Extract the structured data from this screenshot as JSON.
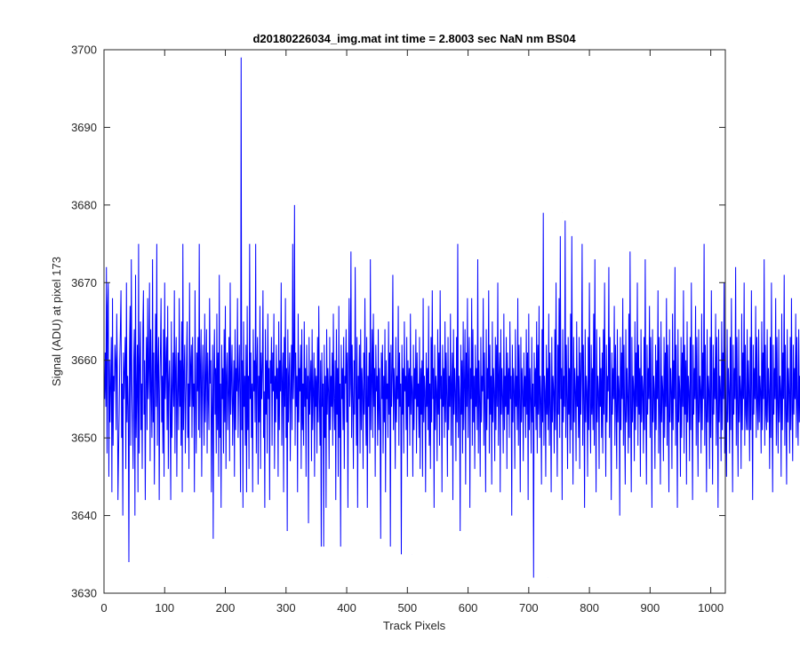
{
  "chart_data": {
    "type": "line",
    "title": "d20180226034_img.mat int time = 2.8003 sec  NaN nm BS04",
    "xlabel": "Track Pixels",
    "ylabel": "Signal (ADU) at pixel 173",
    "xlim": [
      0,
      1024
    ],
    "ylim": [
      3630,
      3700
    ],
    "xticks": [
      0,
      100,
      200,
      300,
      400,
      500,
      600,
      700,
      800,
      900,
      1000
    ],
    "yticks": [
      3630,
      3640,
      3650,
      3660,
      3670,
      3680,
      3690,
      3700
    ],
    "grid": false,
    "legend": "none",
    "series_color": "#0000ff",
    "series": [
      {
        "x_start": 1,
        "x_step": 1,
        "notable_points": [
          {
            "x": 228,
            "y": 3699
          },
          {
            "x": 318,
            "y": 3680
          },
          {
            "x": 755,
            "y": 3679
          },
          {
            "x": 41,
            "y": 3634
          },
          {
            "x": 732,
            "y": 3632
          },
          {
            "x": 508,
            "y": 3635
          }
        ],
        "values": [
          3655,
          3661,
          3654,
          3672,
          3648,
          3667,
          3670,
          3645,
          3660,
          3652,
          3657,
          3663,
          3643,
          3668,
          3649,
          3658,
          3656,
          3662,
          3660,
          3651,
          3666,
          3659,
          3642,
          3648,
          3653,
          3660,
          3664,
          3669,
          3650,
          3657,
          3640,
          3661,
          3655,
          3659,
          3663,
          3646,
          3670,
          3652,
          3658,
          3654,
          3634,
          3661,
          3667,
          3649,
          3673,
          3657,
          3653,
          3646,
          3660,
          3664,
          3640,
          3671,
          3650,
          3656,
          3662,
          3643,
          3675,
          3648,
          3659,
          3665,
          3651,
          3657,
          3646,
          3664,
          3669,
          3653,
          3660,
          3642,
          3657,
          3663,
          3651,
          3668,
          3655,
          3659,
          3670,
          3647,
          3664,
          3656,
          3650,
          3673,
          3652,
          3661,
          3644,
          3657,
          3666,
          3654,
          3675,
          3649,
          3659,
          3663,
          3642,
          3656,
          3661,
          3668,
          3652,
          3658,
          3648,
          3664,
          3645,
          3670,
          3655,
          3659,
          3663,
          3651,
          3667,
          3646,
          3657,
          3660,
          3653,
          3642,
          3665,
          3650,
          3656,
          3661,
          3654,
          3669,
          3648,
          3659,
          3663,
          3645,
          3656,
          3661,
          3651,
          3668,
          3654,
          3660,
          3649,
          3665,
          3643,
          3675,
          3651,
          3658,
          3662,
          3648,
          3655,
          3660,
          3665,
          3650,
          3657,
          3646,
          3670,
          3654,
          3659,
          3662,
          3650,
          3663,
          3654,
          3657,
          3643,
          3669,
          3655,
          3648,
          3661,
          3656,
          3663,
          3651,
          3675,
          3650,
          3659,
          3664,
          3645,
          3657,
          3662,
          3655,
          3649,
          3666,
          3652,
          3658,
          3664,
          3648,
          3661,
          3655,
          3651,
          3668,
          3657,
          3660,
          3643,
          3654,
          3662,
          3637,
          3658,
          3664,
          3653,
          3659,
          3648,
          3666,
          3651,
          3661,
          3645,
          3671,
          3650,
          3657,
          3641,
          3662,
          3655,
          3659,
          3648,
          3664,
          3652,
          3667,
          3646,
          3658,
          3661,
          3651,
          3656,
          3663,
          3647,
          3670,
          3653,
          3658,
          3662,
          3649,
          3655,
          3660,
          3645,
          3664,
          3651,
          3659,
          3656,
          3668,
          3650,
          3657,
          3662,
          3654,
          3643,
          3699,
          3651,
          3660,
          3641,
          3665,
          3654,
          3658,
          3649,
          3662,
          3643,
          3667,
          3651,
          3658,
          3646,
          3675,
          3655,
          3661,
          3650,
          3657,
          3643,
          3664,
          3656,
          3660,
          3652,
          3675,
          3648,
          3659,
          3663,
          3644,
          3658,
          3652,
          3667,
          3646,
          3661,
          3655,
          3659,
          3669,
          3650,
          3656,
          3641,
          3664,
          3653,
          3660,
          3648,
          3666,
          3655,
          3659,
          3642,
          3660,
          3657,
          3663,
          3649,
          3661,
          3656,
          3666,
          3646,
          3658,
          3652,
          3662,
          3655,
          3659,
          3645,
          3665,
          3651,
          3660,
          3656,
          3670,
          3649,
          3657,
          3661,
          3643,
          3663,
          3654,
          3668,
          3650,
          3659,
          3638,
          3664,
          3652,
          3658,
          3661,
          3647,
          3656,
          3662,
          3651,
          3675,
          3655,
          3659,
          3680,
          3649,
          3661,
          3654,
          3658,
          3643,
          3666,
          3652,
          3659,
          3656,
          3662,
          3646,
          3664,
          3651,
          3657,
          3649,
          3665,
          3654,
          3659,
          3645,
          3662,
          3655,
          3658,
          3639,
          3663,
          3653,
          3657,
          3660,
          3647,
          3664,
          3651,
          3656,
          3661,
          3645,
          3659,
          3654,
          3658,
          3648,
          3663,
          3652,
          3667,
          3655,
          3649,
          3660,
          3636,
          3661,
          3654,
          3657,
          3636,
          3662,
          3650,
          3658,
          3641,
          3664,
          3653,
          3659,
          3656,
          3646,
          3663,
          3651,
          3658,
          3654,
          3661,
          3649,
          3666,
          3655,
          3651,
          3660,
          3642,
          3664,
          3653,
          3659,
          3645,
          3667,
          3650,
          3657,
          3636,
          3662,
          3655,
          3659,
          3651,
          3663,
          3646,
          3658,
          3657,
          3664,
          3652,
          3661,
          3641,
          3659,
          3668,
          3654,
          3657,
          3674,
          3650,
          3662,
          3655,
          3646,
          3660,
          3653,
          3672,
          3657,
          3649,
          3663,
          3641,
          3658,
          3655,
          3662,
          3648,
          3664,
          3651,
          3659,
          3656,
          3646,
          3661,
          3653,
          3668,
          3655,
          3649,
          3663,
          3641,
          3658,
          3654,
          3661,
          3648,
          3673,
          3651,
          3657,
          3664,
          3650,
          3666,
          3654,
          3659,
          3645,
          3662,
          3656,
          3658,
          3649,
          3664,
          3651,
          3659,
          3653,
          3637,
          3661,
          3655,
          3662,
          3648,
          3658,
          3652,
          3664,
          3643,
          3660,
          3655,
          3657,
          3650,
          3665,
          3653,
          3661,
          3636,
          3662,
          3654,
          3658,
          3671,
          3651,
          3659,
          3656,
          3646,
          3663,
          3652,
          3658,
          3655,
          3667,
          3649,
          3661,
          3654,
          3657,
          3635,
          3662,
          3653,
          3659,
          3648,
          3665,
          3656,
          3658,
          3651,
          3663,
          3645,
          3660,
          3654,
          3659,
          3649,
          3666,
          3653,
          3658,
          3656,
          3645,
          3662,
          3651,
          3659,
          3655,
          3664,
          3648,
          3661,
          3654,
          3657,
          3650,
          3663,
          3646,
          3659,
          3653,
          3660,
          3645,
          3668,
          3652,
          3658,
          3656,
          3643,
          3661,
          3654,
          3659,
          3651,
          3667,
          3649,
          3657,
          3646,
          3663,
          3652,
          3669,
          3655,
          3659,
          3641,
          3662,
          3651,
          3658,
          3656,
          3647,
          3664,
          3653,
          3661,
          3649,
          3669,
          3655,
          3658,
          3643,
          3662,
          3654,
          3659,
          3650,
          3665,
          3652,
          3661,
          3655,
          3645,
          3663,
          3651,
          3658,
          3654,
          3666,
          3649,
          3657,
          3661,
          3642,
          3664,
          3653,
          3659,
          3656,
          3647,
          3663,
          3652,
          3675,
          3650,
          3658,
          3655,
          3638,
          3662,
          3653,
          3660,
          3648,
          3665,
          3651,
          3657,
          3664,
          3644,
          3661,
          3654,
          3668,
          3650,
          3658,
          3663,
          3641,
          3659,
          3655,
          3668,
          3649,
          3664,
          3652,
          3658,
          3646,
          3662,
          3654,
          3659,
          3651,
          3673,
          3648,
          3660,
          3655,
          3645,
          3663,
          3652,
          3658,
          3656,
          3668,
          3649,
          3661,
          3654,
          3643,
          3664,
          3651,
          3659,
          3655,
          3669,
          3648,
          3662,
          3653,
          3658,
          3644,
          3665,
          3652,
          3659,
          3656,
          3647,
          3663,
          3651,
          3662,
          3654,
          3670,
          3649,
          3658,
          3661,
          3643,
          3664,
          3653,
          3659,
          3655,
          3648,
          3666,
          3651,
          3658,
          3654,
          3663,
          3646,
          3661,
          3653,
          3659,
          3650,
          3665,
          3655,
          3658,
          3640,
          3662,
          3652,
          3659,
          3656,
          3646,
          3664,
          3654,
          3658,
          3651,
          3668,
          3649,
          3662,
          3655,
          3643,
          3663,
          3652,
          3659,
          3656,
          3647,
          3661,
          3654,
          3658,
          3650,
          3664,
          3653,
          3661,
          3642,
          3666,
          3651,
          3659,
          3655,
          3648,
          3663,
          3652,
          3657,
          3632,
          3661,
          3654,
          3659,
          3651,
          3665,
          3648,
          3662,
          3653,
          3667,
          3650,
          3658,
          3655,
          3644,
          3664,
          3652,
          3679,
          3649,
          3658,
          3656,
          3645,
          3662,
          3653,
          3659,
          3651,
          3666,
          3649,
          3661,
          3654,
          3643,
          3663,
          3652,
          3658,
          3656,
          3648,
          3664,
          3651,
          3670,
          3654,
          3645,
          3662,
          3653,
          3668,
          3650,
          3676,
          3655,
          3659,
          3642,
          3664,
          3652,
          3658,
          3654,
          3678,
          3650,
          3662,
          3655,
          3646,
          3663,
          3653,
          3659,
          3648,
          3666,
          3651,
          3676,
          3655,
          3644,
          3663,
          3652,
          3659,
          3656,
          3647,
          3665,
          3654,
          3658,
          3650,
          3663,
          3646,
          3661,
          3653,
          3659,
          3675,
          3649,
          3662,
          3655,
          3641,
          3664,
          3652,
          3658,
          3656,
          3645,
          3663,
          3651,
          3670,
          3654,
          3648,
          3662,
          3653,
          3659,
          3651,
          3666,
          3649,
          3673,
          3655,
          3643,
          3664,
          3652,
          3658,
          3656,
          3646,
          3663,
          3654,
          3659,
          3650,
          3661,
          3648,
          3664,
          3653,
          3670,
          3655,
          3645,
          3662,
          3652,
          3658,
          3656,
          3672,
          3650,
          3663,
          3654,
          3642,
          3661,
          3653,
          3659,
          3655,
          3667,
          3649,
          3662,
          3654,
          3646,
          3664,
          3652,
          3658,
          3656,
          3640,
          3663,
          3651,
          3661,
          3655,
          3668,
          3649,
          3662,
          3653,
          3644,
          3664,
          3652,
          3659,
          3655,
          3648,
          3666,
          3650,
          3674,
          3654,
          3643,
          3663,
          3652,
          3658,
          3656,
          3647,
          3665,
          3651,
          3661,
          3654,
          3670,
          3649,
          3662,
          3653,
          3659,
          3645,
          3664,
          3652,
          3658,
          3656,
          3648,
          3663,
          3651,
          3673,
          3654,
          3644,
          3662,
          3653,
          3659,
          3655,
          3667,
          3650,
          3663,
          3654,
          3641,
          3664,
          3652,
          3658,
          3656,
          3646,
          3662,
          3651,
          3660,
          3655,
          3669,
          3648,
          3663,
          3653,
          3644,
          3665,
          3652,
          3658,
          3656,
          3647,
          3663,
          3650,
          3661,
          3654,
          3668,
          3649,
          3662,
          3653,
          3643,
          3664,
          3652,
          3659,
          3656,
          3646,
          3666,
          3651,
          3660,
          3655,
          3672,
          3649,
          3662,
          3653,
          3641,
          3664,
          3652,
          3658,
          3656,
          3645,
          3663,
          3650,
          3661,
          3654,
          3669,
          3648,
          3662,
          3653,
          3660,
          3644,
          3665,
          3652,
          3658,
          3656,
          3647,
          3663,
          3651,
          3670,
          3654,
          3642,
          3662,
          3653,
          3659,
          3655,
          3667,
          3649,
          3663,
          3654,
          3645,
          3664,
          3652,
          3658,
          3656,
          3648,
          3666,
          3651,
          3661,
          3655,
          3675,
          3649,
          3662,
          3653,
          3643,
          3664,
          3652,
          3658,
          3656,
          3646,
          3663,
          3650,
          3669,
          3654,
          3644,
          3662,
          3653,
          3659,
          3655,
          3666,
          3649,
          3663,
          3654,
          3641,
          3664,
          3652,
          3658,
          3656,
          3647,
          3665,
          3651,
          3661,
          3655,
          3670,
          3648,
          3662,
          3653,
          3645,
          3664,
          3652,
          3659,
          3656,
          3648,
          3663,
          3651,
          3668,
          3654,
          3643,
          3662,
          3653,
          3659,
          3655,
          3672,
          3649,
          3663,
          3654,
          3645,
          3664,
          3652,
          3658,
          3656,
          3646,
          3666,
          3651,
          3661,
          3655,
          3670,
          3649,
          3662,
          3653,
          3651,
          3664,
          3651,
          3660,
          3656,
          3647,
          3663,
          3651,
          3669,
          3654,
          3642,
          3662,
          3653,
          3659,
          3655,
          3667,
          3650,
          3663,
          3654,
          3651,
          3664,
          3652,
          3658,
          3656,
          3648,
          3665,
          3651,
          3661,
          3655,
          3673,
          3649,
          3662,
          3653,
          3651,
          3664,
          3652,
          3659,
          3656,
          3646,
          3663,
          3650,
          3670,
          3654,
          3643,
          3662,
          3653,
          3659,
          3655,
          3668,
          3649,
          3663,
          3654,
          3648,
          3664,
          3652,
          3658,
          3656,
          3645,
          3666,
          3651,
          3661,
          3655,
          3671,
          3649,
          3662,
          3653,
          3644,
          3664,
          3652,
          3659,
          3656,
          3648,
          3663,
          3651,
          3668,
          3654,
          3647,
          3662,
          3653,
          3659,
          3655,
          3666,
          3650,
          3663,
          3654,
          3649,
          3664,
          3652,
          3658,
          3656,
          3651,
          3665,
          3648
        ]
      }
    ]
  }
}
